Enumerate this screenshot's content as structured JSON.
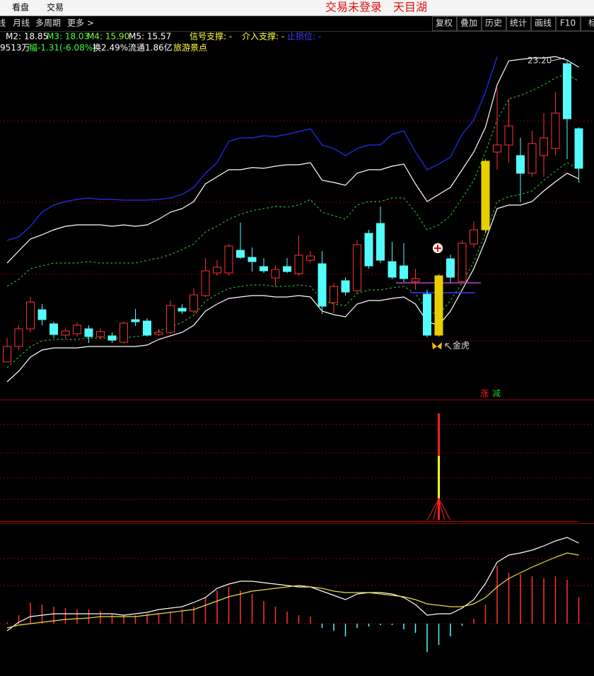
{
  "top_bar": {
    "menu": [
      "看盘",
      "交易"
    ],
    "status": "交易未登录",
    "stock_name": "天目湖"
  },
  "toolbar": {
    "periods": [
      "线",
      "月线",
      "多周期",
      "更多 >"
    ],
    "buttons": [
      "复权",
      "叠加",
      "历史",
      "统计",
      "画线",
      "F10",
      "标"
    ]
  },
  "info": {
    "ma": [
      {
        "text": "M2: 18.85",
        "color": "#ffffff"
      },
      {
        "text": "M3: 18.03",
        "color": "#40ff40"
      },
      {
        "text": "M4: 15.90",
        "color": "#80ff40"
      },
      {
        "text": "M5: 15.57",
        "color": "#ffffff"
      }
    ],
    "signals": [
      {
        "text": "信号支撑: -",
        "color": "#ffff40"
      },
      {
        "text": "介入支撑: -",
        "color": "#ffff40"
      },
      {
        "text": "止损位: -",
        "color": "#4040ff"
      }
    ],
    "quote": [
      {
        "text": "9513万",
        "color": "#ffffff"
      },
      {
        "text": "幅-1.31(-6.08%)",
        "color": "#40ff40"
      },
      {
        "text": "换2.49%",
        "color": "#ffffff"
      },
      {
        "text": "流通1.86亿",
        "color": "#ffffff"
      },
      {
        "text": "旅游景点",
        "color": "#ffff40"
      }
    ]
  },
  "chart_data": [
    {
      "type": "candlestick",
      "open": [
        14.66,
        15.1,
        15.6,
        16.14,
        15.74,
        15.42,
        15.46,
        15.6,
        15.38,
        15.4,
        15.22,
        15.86,
        15.82,
        15.44,
        15.5,
        16.18,
        16.1,
        16.54,
        17.18,
        17.18,
        17.82,
        17.62,
        17.36,
        17.04,
        17.36,
        17.16,
        17.54,
        17.44,
        16.34,
        16.96,
        16.68,
        18.3,
        18.58,
        17.5,
        17.38,
        16.94,
        16.58,
        15.42,
        17.58,
        16.94,
        18.0,
        18.4,
        20.6,
        20.8,
        20.5,
        20.0,
        20.5,
        20.7,
        23.1,
        21.26
      ],
      "high": [
        15.34,
        15.7,
        16.5,
        16.3,
        15.8,
        15.6,
        15.78,
        15.7,
        15.62,
        15.5,
        15.8,
        16.16,
        15.9,
        15.6,
        16.4,
        16.3,
        16.74,
        17.6,
        17.54,
        18.0,
        18.6,
        17.9,
        17.6,
        17.4,
        17.6,
        18.24,
        17.8,
        17.8,
        16.9,
        17.06,
        18.1,
        18.4,
        19.06,
        18.06,
        18.02,
        17.3,
        16.7,
        17.14,
        17.7,
        18.1,
        18.64,
        20.4,
        22.4,
        22.1,
        21.0,
        21.2,
        21.7,
        22.3,
        23.2,
        21.3
      ],
      "low": [
        14.66,
        15.0,
        15.5,
        15.7,
        15.34,
        15.34,
        15.38,
        15.2,
        15.3,
        15.2,
        15.18,
        15.68,
        15.38,
        15.4,
        15.46,
        16.02,
        16.02,
        16.5,
        17.1,
        17.1,
        17.58,
        17.22,
        17.18,
        16.8,
        17.18,
        17.1,
        17.46,
        16.02,
        16.04,
        16.54,
        16.62,
        17.3,
        17.46,
        17.0,
        16.92,
        16.7,
        15.36,
        15.38,
        16.9,
        16.9,
        17.9,
        18.3,
        20.1,
        20.3,
        19.18,
        19.9,
        19.9,
        20.5,
        20.4,
        19.74
      ],
      "close": [
        15.1,
        15.6,
        16.36,
        15.86,
        15.44,
        15.54,
        15.7,
        15.38,
        15.52,
        15.28,
        15.76,
        15.8,
        15.42,
        15.5,
        16.26,
        16.1,
        16.56,
        17.24,
        17.34,
        17.94,
        17.62,
        17.5,
        17.24,
        17.28,
        17.22,
        17.68,
        17.66,
        16.24,
        16.8,
        16.64,
        17.98,
        17.38,
        17.54,
        17.06,
        17.02,
        17.02,
        15.42,
        17.1,
        17.06,
        18.02,
        18.4,
        20.34,
        20.8,
        21.34,
        20.0,
        20.84,
        21.0,
        21.7,
        21.54,
        20.14
      ],
      "up_color": "#ff3232",
      "down_color": "#54fcfc",
      "highlighted": [
        37,
        41
      ],
      "highlight_color": "#e8d000",
      "lines": [
        {
          "color": "#1e32ff",
          "dashed": false,
          "values": [
            18.1,
            18.2,
            18.5,
            18.9,
            19.1,
            19.2,
            19.26,
            19.3,
            19.26,
            19.26,
            19.24,
            19.24,
            19.24,
            19.26,
            19.3,
            19.4,
            19.6,
            20.0,
            20.3,
            20.9,
            21.0,
            21.0,
            21.06,
            21.04,
            21.1,
            21.18,
            21.26,
            20.8,
            20.7,
            20.5,
            20.7,
            20.8,
            20.8,
            21.1,
            21.2,
            20.6,
            20.1,
            20.26,
            20.46,
            21.1,
            21.5,
            22.3,
            23.3,
            null,
            null,
            null,
            null,
            null,
            null,
            null
          ]
        },
        {
          "color": "#ffffff",
          "dashed": false,
          "values": [
            17.46,
            17.8,
            18.14,
            18.26,
            18.4,
            18.5,
            18.54,
            18.54,
            18.54,
            18.5,
            18.54,
            18.5,
            18.54,
            18.7,
            18.9,
            19.0,
            19.2,
            19.7,
            19.9,
            20.1,
            20.1,
            20.16,
            20.14,
            20.2,
            20.24,
            20.24,
            20.3,
            19.8,
            19.74,
            19.66,
            20.0,
            20.1,
            20.1,
            20.2,
            20.26,
            19.7,
            19.2,
            19.4,
            19.6,
            20.1,
            20.6,
            21.3,
            22.5,
            23.18,
            23.22,
            23.26,
            23.26,
            23.3,
            23.2,
            23.0
          ]
        },
        {
          "color": "#20b020",
          "dashed": true,
          "values": [
            16.8,
            17.0,
            17.3,
            17.38,
            17.46,
            17.46,
            17.46,
            17.5,
            17.46,
            17.46,
            17.46,
            17.46,
            17.54,
            17.6,
            17.7,
            17.84,
            18.0,
            18.34,
            18.5,
            18.7,
            18.84,
            18.94,
            19.0,
            19.06,
            19.04,
            19.1,
            19.26,
            18.9,
            18.8,
            18.7,
            19.1,
            19.2,
            19.2,
            19.3,
            19.3,
            18.9,
            18.4,
            18.54,
            18.8,
            19.3,
            19.8,
            20.6,
            21.5,
            22.1,
            22.2,
            22.34,
            22.5,
            22.7,
            22.8,
            22.6
          ]
        },
        {
          "color": "#20b020",
          "dashed": true,
          "values": [
            14.5,
            14.8,
            15.1,
            15.26,
            15.3,
            15.3,
            15.3,
            15.34,
            15.34,
            15.34,
            15.34,
            15.38,
            15.42,
            15.54,
            15.66,
            15.78,
            15.98,
            16.38,
            16.58,
            16.74,
            16.8,
            16.84,
            16.84,
            16.8,
            16.8,
            16.84,
            16.8,
            16.4,
            16.3,
            16.26,
            16.6,
            16.7,
            16.7,
            16.76,
            16.8,
            16.6,
            16.1,
            16.0,
            16.4,
            16.9,
            17.5,
            18.3,
            19.2,
            19.34,
            19.4,
            19.5,
            19.8,
            20.06,
            20.3,
            20.1
          ]
        },
        {
          "color": "#ffffff",
          "dashed": false,
          "values": [
            14.1,
            14.4,
            14.8,
            15.0,
            15.06,
            15.06,
            15.06,
            15.1,
            15.1,
            15.1,
            15.1,
            15.1,
            15.14,
            15.3,
            15.4,
            15.5,
            15.7,
            16.1,
            16.3,
            16.46,
            16.5,
            16.54,
            16.54,
            16.5,
            16.5,
            16.54,
            16.5,
            16.1,
            16.0,
            15.94,
            16.3,
            16.4,
            16.4,
            16.46,
            16.5,
            16.3,
            15.8,
            15.7,
            16.1,
            16.7,
            17.3,
            18.1,
            19.0,
            19.1,
            19.1,
            19.2,
            19.5,
            19.76,
            20.0,
            19.84
          ]
        }
      ],
      "levels": [
        {
          "value": 16.9,
          "color": "#c040c0"
        },
        {
          "value": 16.62,
          "color": "#3a3aff"
        }
      ],
      "ylim": [
        13.6,
        23.4
      ],
      "gridlines": [
        21.48,
        19.18,
        17.14,
        15.26
      ],
      "grid_color": "#8a0000",
      "max_label": "23.20",
      "annotation": "金虎"
    },
    {
      "type": "bar",
      "series": [
        {
          "name": "涨",
          "color": "#ff2020",
          "values": [
            0,
            0,
            0,
            0,
            0,
            0,
            0,
            0,
            0,
            0,
            0,
            0,
            0,
            0,
            0,
            0,
            0,
            0,
            0,
            0,
            0,
            0,
            0,
            0,
            0,
            0,
            0,
            0,
            0,
            0,
            0,
            0,
            0,
            0,
            0,
            0,
            0,
            94,
            0,
            0,
            0,
            0,
            0,
            0,
            0,
            0,
            0,
            0,
            0,
            0
          ]
        },
        {
          "name": "减",
          "color": "#20c020",
          "values": [
            0,
            0,
            0,
            0,
            0,
            0,
            0,
            0,
            0,
            0,
            0,
            0,
            0,
            0,
            0,
            0,
            0,
            0,
            0,
            0,
            0,
            0,
            0,
            0,
            0,
            0,
            0,
            0,
            0,
            0,
            0,
            0,
            0,
            0,
            0,
            0,
            0,
            0,
            0,
            0,
            0,
            0,
            0,
            0,
            0,
            0,
            0,
            0,
            0,
            0
          ]
        }
      ],
      "ylim": [
        0,
        100
      ],
      "gridlines": [
        18,
        37,
        59,
        84
      ],
      "grid_color": "#8a0000"
    },
    {
      "type": "macd",
      "histogram": [
        0.02,
        0.12,
        0.3,
        0.27,
        0.24,
        0.22,
        0.2,
        0.2,
        0.18,
        0.14,
        0.12,
        0.12,
        0.14,
        0.14,
        0.17,
        0.2,
        0.24,
        0.37,
        0.47,
        0.52,
        0.47,
        0.42,
        0.32,
        0.24,
        0.17,
        0.12,
        0.1,
        -0.06,
        -0.1,
        -0.18,
        -0.06,
        -0.04,
        -0.02,
        -0.02,
        -0.08,
        -0.13,
        -0.4,
        -0.3,
        -0.18,
        -0.03,
        0.07,
        0.27,
        0.82,
        0.72,
        0.7,
        0.67,
        0.64,
        0.67,
        0.62,
        0.37
      ],
      "up_color": "#ff3232",
      "down_color": "#54fcfc",
      "lines": [
        {
          "color": "#ffffff",
          "dashed": false,
          "values": [
            -0.1,
            0.02,
            0.1,
            0.12,
            0.14,
            0.14,
            0.14,
            0.14,
            0.14,
            0.14,
            0.12,
            0.14,
            0.16,
            0.2,
            0.22,
            0.24,
            0.3,
            0.37,
            0.5,
            0.56,
            0.6,
            0.6,
            0.58,
            0.56,
            0.54,
            0.52,
            0.52,
            0.46,
            0.4,
            0.34,
            0.42,
            0.44,
            0.44,
            0.42,
            0.37,
            0.27,
            0.12,
            0.14,
            0.14,
            0.22,
            0.34,
            0.57,
            0.87,
            0.97,
            1.0,
            1.04,
            1.1,
            1.17,
            1.22,
            1.14
          ]
        },
        {
          "color": "#e8e040",
          "dashed": false,
          "values": [
            -0.06,
            -0.02,
            0.0,
            0.02,
            0.04,
            0.06,
            0.07,
            0.08,
            0.1,
            0.1,
            0.1,
            0.1,
            0.12,
            0.14,
            0.16,
            0.18,
            0.2,
            0.26,
            0.32,
            0.38,
            0.42,
            0.46,
            0.48,
            0.5,
            0.52,
            0.54,
            0.52,
            0.5,
            0.46,
            0.44,
            0.44,
            0.44,
            0.42,
            0.4,
            0.38,
            0.34,
            0.28,
            0.26,
            0.24,
            0.24,
            0.28,
            0.37,
            0.52,
            0.64,
            0.72,
            0.8,
            0.87,
            0.94,
            1.0,
            0.97
          ]
        }
      ],
      "ylim": [
        -0.74,
        1.4
      ],
      "gridlines": [
        0,
        0.54,
        0.92
      ],
      "grid_color": "#8a0000"
    }
  ]
}
